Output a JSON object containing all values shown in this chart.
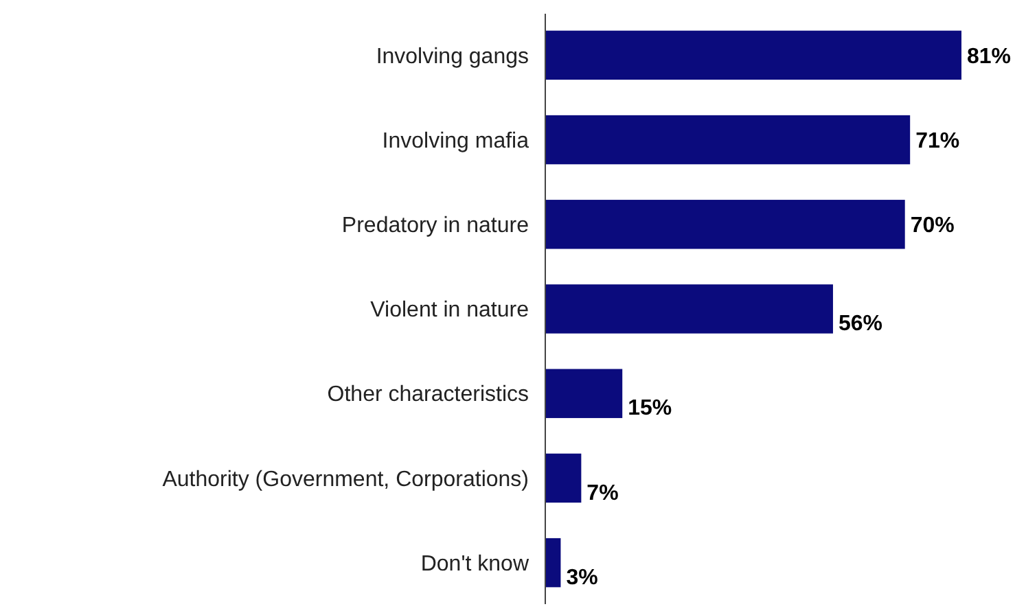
{
  "chart_data": {
    "type": "bar",
    "orientation": "horizontal",
    "categories": [
      "Involving gangs",
      "Involving mafia",
      "Predatory in nature",
      "Violent in nature",
      "Other characteristics",
      "Authority (Government, Corporations)",
      "Don't know"
    ],
    "values": [
      81,
      71,
      70,
      56,
      15,
      7,
      3
    ],
    "value_labels": [
      "81%",
      "71%",
      "70%",
      "56%",
      "15%",
      "7%",
      "3%"
    ],
    "color": "#0b0b7d"
  }
}
